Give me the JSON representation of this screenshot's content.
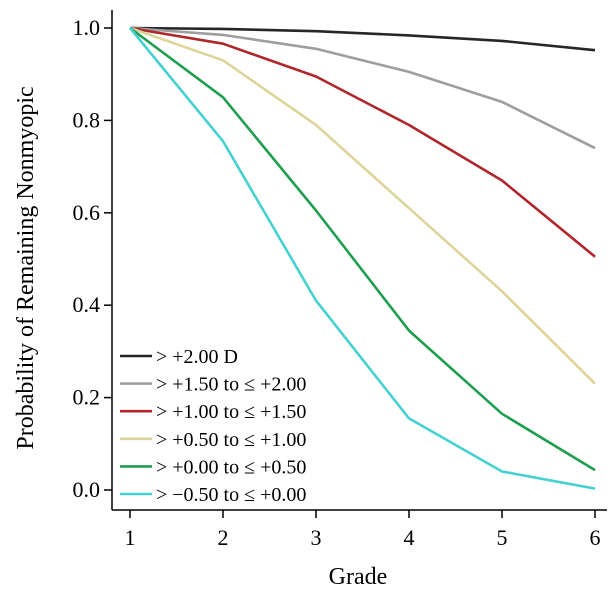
{
  "chart_data": {
    "type": "line",
    "title": "",
    "xlabel": "Grade",
    "ylabel": "Probability of Remaining  Nonmyopic",
    "x": [
      1,
      2,
      3,
      4,
      5,
      6
    ],
    "xlim": [
      1,
      6
    ],
    "ylim": [
      0,
      1
    ],
    "xticks": [
      "1",
      "2",
      "3",
      "4",
      "5",
      "6"
    ],
    "yticks": [
      "0.0",
      "0.2",
      "0.4",
      "0.6",
      "0.8",
      "1.0"
    ],
    "grid": false,
    "legend_position": "bottom-left",
    "series": [
      {
        "name": "> +2.00 D",
        "color": "#262626",
        "values": [
          1.0,
          0.998,
          0.993,
          0.984,
          0.972,
          0.952
        ]
      },
      {
        "name": "> +1.50 to ≤ +2.00",
        "color": "#9e9e9e",
        "values": [
          1.0,
          0.985,
          0.955,
          0.905,
          0.84,
          0.74
        ]
      },
      {
        "name": "> +1.00 to ≤ +1.50",
        "color": "#b0262b",
        "values": [
          1.0,
          0.966,
          0.895,
          0.79,
          0.67,
          0.505
        ]
      },
      {
        "name": "> +0.50 to ≤ +1.00",
        "color": "#ddd49a",
        "values": [
          1.0,
          0.93,
          0.79,
          0.61,
          0.43,
          0.23
        ]
      },
      {
        "name": "> +0.00 to ≤ +0.50",
        "color": "#1f9e4f",
        "values": [
          1.0,
          0.85,
          0.605,
          0.345,
          0.165,
          0.043
        ]
      },
      {
        "name": "> −0.50 to ≤ +0.00",
        "color": "#45d1d1",
        "values": [
          1.0,
          0.755,
          0.41,
          0.155,
          0.04,
          0.003
        ]
      }
    ]
  }
}
